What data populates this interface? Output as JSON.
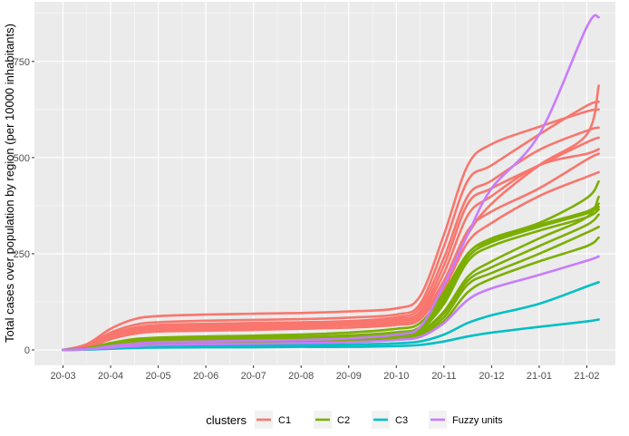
{
  "chart_data": {
    "type": "line",
    "title": "",
    "xlabel": "",
    "ylabel": "Total cases over population by region (per 10000 inhabitants)",
    "x_ticks": [
      "20-03",
      "20-04",
      "20-05",
      "20-06",
      "20-07",
      "20-08",
      "20-09",
      "20-10",
      "20-11",
      "20-12",
      "21-01",
      "21-02"
    ],
    "y_ticks": [
      0,
      250,
      500,
      750
    ],
    "ylim": [
      -40,
      905
    ],
    "grid": true,
    "legend": {
      "title": "clusters",
      "position": "bottom",
      "entries": [
        {
          "label": "C1",
          "color": "#F8766D"
        },
        {
          "label": "C2",
          "color": "#7CAE00"
        },
        {
          "label": "C3",
          "color": "#00BFC4"
        },
        {
          "label": "Fuzzy units",
          "color": "#C77CFF"
        }
      ]
    },
    "x_index_note": "x values are month indices: 0 = 20-03 … 11 = 21-02",
    "series": [
      {
        "cluster": "C1",
        "x": [
          0,
          0.5,
          1,
          1.5,
          2,
          3,
          4,
          5,
          6,
          7,
          7.5,
          8,
          8.5,
          9,
          10,
          11,
          11.25
        ],
        "y": [
          0,
          15,
          55,
          80,
          88,
          92,
          94,
          96,
          100,
          108,
          140,
          300,
          480,
          535,
          580,
          620,
          625
        ]
      },
      {
        "cluster": "C1",
        "x": [
          0,
          0.5,
          1,
          1.5,
          2,
          3,
          4,
          5,
          6,
          7,
          7.5,
          8,
          8.5,
          9,
          10,
          11,
          11.25
        ],
        "y": [
          0,
          12,
          45,
          65,
          72,
          76,
          78,
          80,
          84,
          92,
          120,
          270,
          440,
          480,
          560,
          635,
          645
        ]
      },
      {
        "cluster": "C1",
        "x": [
          0,
          0.5,
          1,
          1.5,
          2,
          3,
          4,
          5,
          6,
          7,
          7.5,
          8,
          8.5,
          9,
          10,
          11,
          11.25
        ],
        "y": [
          0,
          10,
          40,
          58,
          65,
          68,
          70,
          72,
          75,
          85,
          110,
          240,
          400,
          440,
          520,
          570,
          578
        ]
      },
      {
        "cluster": "C1",
        "x": [
          0,
          0.5,
          1,
          1.5,
          2,
          3,
          4,
          5,
          6,
          7,
          7.5,
          8,
          8.5,
          9,
          10,
          11,
          11.25
        ],
        "y": [
          0,
          9,
          38,
          55,
          62,
          65,
          66,
          68,
          72,
          80,
          100,
          220,
          380,
          420,
          480,
          540,
          552
        ]
      },
      {
        "cluster": "C1",
        "x": [
          0,
          0.5,
          1,
          1.5,
          2,
          3,
          4,
          5,
          6,
          7,
          7.5,
          8,
          8.5,
          9,
          10,
          11,
          11.25
        ],
        "y": [
          0,
          8,
          35,
          52,
          60,
          62,
          64,
          66,
          70,
          78,
          95,
          200,
          350,
          400,
          480,
          510,
          522
        ]
      },
      {
        "cluster": "C1",
        "x": [
          0,
          0.5,
          1,
          1.5,
          2,
          3,
          4,
          5,
          6,
          7,
          7.5,
          8,
          8.5,
          9,
          10,
          11,
          11.25
        ],
        "y": [
          0,
          7,
          32,
          48,
          56,
          58,
          60,
          62,
          66,
          74,
          90,
          180,
          310,
          360,
          420,
          495,
          510
        ]
      },
      {
        "cluster": "C1",
        "x": [
          0,
          0.5,
          1,
          1.5,
          2,
          3,
          4,
          5,
          6,
          7,
          7.5,
          8,
          8.5,
          9,
          10,
          11,
          11.25
        ],
        "y": [
          0,
          6,
          30,
          45,
          52,
          55,
          57,
          60,
          64,
          70,
          85,
          160,
          280,
          330,
          400,
          450,
          462
        ]
      },
      {
        "cluster": "C1",
        "x": [
          0,
          0.5,
          1,
          1.5,
          2,
          3,
          4,
          5,
          6,
          7,
          7.5,
          8,
          8.5,
          9,
          10,
          11,
          11.25
        ],
        "y": [
          0,
          6,
          28,
          42,
          48,
          50,
          52,
          55,
          58,
          65,
          80,
          170,
          300,
          380,
          480,
          560,
          687
        ]
      },
      {
        "cluster": "C2",
        "x": [
          0,
          0.5,
          1,
          1.5,
          2,
          3,
          4,
          5,
          6,
          7,
          7.5,
          8,
          8.5,
          9,
          10,
          11,
          11.25
        ],
        "y": [
          0,
          5,
          18,
          28,
          32,
          35,
          37,
          40,
          45,
          55,
          70,
          150,
          250,
          290,
          330,
          395,
          438
        ]
      },
      {
        "cluster": "C2",
        "x": [
          0,
          0.5,
          1,
          1.5,
          2,
          3,
          4,
          5,
          6,
          7,
          7.5,
          8,
          8.5,
          9,
          10,
          11,
          11.25
        ],
        "y": [
          0,
          4,
          15,
          24,
          28,
          30,
          32,
          34,
          38,
          46,
          60,
          140,
          250,
          285,
          325,
          360,
          380
        ]
      },
      {
        "cluster": "C2",
        "x": [
          0,
          0.5,
          1,
          1.5,
          2,
          3,
          4,
          5,
          6,
          7,
          7.5,
          8,
          8.5,
          9,
          10,
          11,
          11.25
        ],
        "y": [
          0,
          4,
          14,
          22,
          26,
          28,
          29,
          31,
          34,
          42,
          55,
          130,
          240,
          280,
          320,
          355,
          372
        ]
      },
      {
        "cluster": "C2",
        "x": [
          0,
          0.5,
          1,
          1.5,
          2,
          3,
          4,
          5,
          6,
          7,
          7.5,
          8,
          8.5,
          9,
          10,
          11,
          11.25
        ],
        "y": [
          0,
          3,
          12,
          20,
          24,
          26,
          27,
          29,
          32,
          40,
          52,
          120,
          230,
          270,
          310,
          345,
          365
        ]
      },
      {
        "cluster": "C2",
        "x": [
          0,
          0.5,
          1,
          1.5,
          2,
          3,
          4,
          5,
          6,
          7,
          7.5,
          8,
          8.5,
          9,
          10,
          11,
          11.25
        ],
        "y": [
          0,
          3,
          10,
          18,
          22,
          24,
          25,
          27,
          30,
          36,
          48,
          100,
          190,
          230,
          290,
          345,
          398
        ]
      },
      {
        "cluster": "C2",
        "x": [
          0,
          0.5,
          1,
          1.5,
          2,
          3,
          4,
          5,
          6,
          7,
          7.5,
          8,
          8.5,
          9,
          10,
          11,
          11.25
        ],
        "y": [
          0,
          3,
          9,
          16,
          20,
          22,
          23,
          25,
          28,
          34,
          45,
          95,
          180,
          215,
          270,
          325,
          352
        ]
      },
      {
        "cluster": "C2",
        "x": [
          0,
          0.5,
          1,
          1.5,
          2,
          3,
          4,
          5,
          6,
          7,
          7.5,
          8,
          8.5,
          9,
          10,
          11,
          11.25
        ],
        "y": [
          0,
          2,
          8,
          14,
          18,
          20,
          21,
          23,
          26,
          31,
          40,
          85,
          170,
          200,
          250,
          305,
          320
        ]
      },
      {
        "cluster": "C2",
        "x": [
          0,
          0.5,
          1,
          1.5,
          2,
          3,
          4,
          5,
          6,
          7,
          7.5,
          8,
          8.5,
          9,
          10,
          11,
          11.25
        ],
        "y": [
          0,
          2,
          7,
          12,
          15,
          17,
          18,
          20,
          22,
          28,
          36,
          75,
          150,
          185,
          230,
          270,
          292
        ]
      },
      {
        "cluster": "C3",
        "x": [
          0,
          0.5,
          1,
          1.5,
          2,
          3,
          4,
          5,
          6,
          7,
          7.5,
          8,
          8.5,
          9,
          10,
          11,
          11.25
        ],
        "y": [
          0,
          1,
          4,
          8,
          10,
          11,
          12,
          13,
          14,
          17,
          22,
          40,
          70,
          90,
          120,
          165,
          176
        ]
      },
      {
        "cluster": "C3",
        "x": [
          0,
          0.5,
          1,
          1.5,
          2,
          3,
          4,
          5,
          6,
          7,
          7.5,
          8,
          8.5,
          9,
          10,
          11,
          11.25
        ],
        "y": [
          0,
          1,
          3,
          5,
          6,
          7,
          7,
          8,
          8,
          10,
          13,
          22,
          35,
          45,
          60,
          74,
          79
        ]
      },
      {
        "cluster": "Fuzzy units",
        "x": [
          0,
          0.5,
          1,
          1.5,
          2,
          3,
          4,
          5,
          6,
          7,
          7.5,
          8,
          8.5,
          9,
          10,
          11,
          11.25
        ],
        "y": [
          0,
          2,
          10,
          16,
          20,
          22,
          24,
          26,
          30,
          40,
          60,
          170,
          300,
          420,
          560,
          840,
          865
        ]
      },
      {
        "cluster": "Fuzzy units",
        "x": [
          0,
          0.5,
          1,
          1.5,
          2,
          3,
          4,
          5,
          6,
          7,
          7.5,
          8,
          8.5,
          9,
          10,
          11,
          11.25
        ],
        "y": [
          0,
          2,
          6,
          10,
          13,
          15,
          16,
          18,
          20,
          26,
          34,
          70,
          130,
          160,
          195,
          232,
          243
        ]
      }
    ]
  }
}
